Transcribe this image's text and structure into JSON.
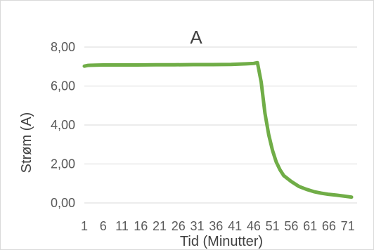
{
  "chart_data": {
    "type": "line",
    "title": "A",
    "xlabel": "Tid (Minutter)",
    "ylabel": "Strøm (A)",
    "ylim": [
      0,
      8
    ],
    "ytick_labels": [
      "0,00",
      "2,00",
      "4,00",
      "6,00",
      "8,00"
    ],
    "ytick_values": [
      0,
      2,
      4,
      6,
      8
    ],
    "xtick_labels": [
      "1",
      "6",
      "11",
      "16",
      "21",
      "26",
      "31",
      "36",
      "41",
      "46",
      "51",
      "56",
      "61",
      "66",
      "71"
    ],
    "xlim": [
      1,
      72
    ],
    "grid": "horizontal",
    "legend": "none",
    "series": [
      {
        "color": "#70ad47",
        "x": [
          1,
          2,
          4,
          6,
          10,
          15,
          20,
          25,
          30,
          35,
          40,
          44,
          46,
          47,
          48,
          49,
          50,
          51,
          52,
          53,
          54,
          56,
          58,
          60,
          62,
          64,
          66,
          68,
          70,
          72
        ],
        "y": [
          7.02,
          7.06,
          7.07,
          7.08,
          7.08,
          7.08,
          7.09,
          7.09,
          7.1,
          7.1,
          7.11,
          7.14,
          7.16,
          7.2,
          6.2,
          4.6,
          3.5,
          2.7,
          2.1,
          1.7,
          1.4,
          1.1,
          0.85,
          0.7,
          0.58,
          0.5,
          0.44,
          0.4,
          0.35,
          0.3
        ]
      }
    ]
  }
}
